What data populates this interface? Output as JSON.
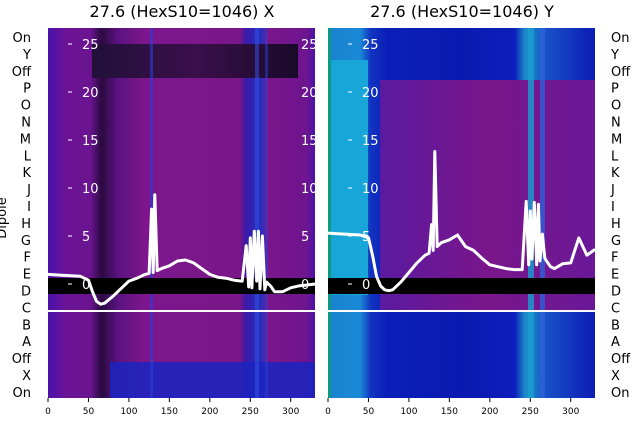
{
  "chart_data": [
    {
      "type": "heatmap",
      "title": "27.6 (HexS10=1046) X",
      "ylabel": "Dipole",
      "categories": [
        "On",
        "Y",
        "Off",
        "P",
        "O",
        "N",
        "M",
        "L",
        "K",
        "J",
        "I",
        "H",
        "G",
        "F",
        "E",
        "D",
        "C",
        "B",
        "A",
        "Off",
        "X",
        "On"
      ],
      "xlim": [
        0,
        330
      ],
      "xticks": [
        0,
        50,
        100,
        150,
        200,
        250,
        300
      ],
      "inner_ylim": [
        -3,
        27
      ],
      "inner_yticks": [
        0,
        5,
        10,
        15,
        20,
        25
      ],
      "series": [
        {
          "name": "",
          "x": [
            0,
            20,
            40,
            50,
            55,
            60,
            65,
            70,
            80,
            90,
            100,
            110,
            120,
            125,
            128,
            130,
            132,
            135,
            140,
            150,
            160,
            170,
            180,
            190,
            200,
            210,
            220,
            230,
            240,
            245,
            248,
            250,
            252,
            255,
            258,
            260,
            262,
            265,
            268,
            270,
            275,
            280,
            290,
            300,
            310,
            320,
            330
          ],
          "y": [
            1.0,
            0.9,
            0.8,
            0.4,
            -0.8,
            -1.8,
            -2.1,
            -2.0,
            -1.3,
            -0.5,
            0.3,
            0.6,
            1.0,
            1.1,
            7.8,
            1.2,
            9.3,
            1.4,
            1.6,
            1.9,
            2.4,
            2.5,
            2.2,
            1.6,
            1.0,
            0.7,
            0.6,
            0.4,
            0.3,
            4.0,
            -0.3,
            4.8,
            -0.4,
            5.5,
            0.3,
            5.5,
            -0.5,
            5.0,
            -0.6,
            0.2,
            -0.2,
            -0.8,
            -0.8,
            -0.4,
            -0.2,
            -0.1,
            0.0
          ]
        }
      ]
    },
    {
      "type": "heatmap",
      "title": "27.6 (HexS10=1046) Y",
      "ylabel": "",
      "categories": [
        "On",
        "Y",
        "Off",
        "P",
        "O",
        "N",
        "M",
        "L",
        "K",
        "J",
        "I",
        "H",
        "G",
        "F",
        "E",
        "D",
        "C",
        "B",
        "A",
        "Off",
        "X",
        "On"
      ],
      "xlim": [
        0,
        330
      ],
      "xticks": [
        0,
        50,
        100,
        150,
        200,
        250,
        300
      ],
      "inner_ylim": [
        -3,
        27
      ],
      "inner_yticks": [
        0,
        5,
        10,
        15,
        20,
        25
      ],
      "series": [
        {
          "name": "",
          "x": [
            0,
            20,
            40,
            50,
            55,
            60,
            65,
            70,
            75,
            80,
            90,
            100,
            110,
            120,
            125,
            128,
            130,
            132,
            135,
            140,
            150,
            160,
            170,
            180,
            190,
            200,
            210,
            220,
            230,
            240,
            245,
            248,
            250,
            252,
            255,
            258,
            260,
            262,
            265,
            268,
            270,
            275,
            280,
            290,
            300,
            310,
            320,
            330
          ],
          "y": [
            5.3,
            5.2,
            5.1,
            4.8,
            3.0,
            0.8,
            -0.2,
            -0.6,
            -0.7,
            -0.6,
            0.2,
            1.2,
            2.2,
            3.0,
            3.2,
            6.2,
            3.5,
            13.8,
            3.9,
            4.3,
            4.6,
            5.1,
            3.9,
            3.5,
            2.7,
            2.0,
            1.8,
            1.6,
            1.5,
            1.5,
            8.6,
            2.0,
            7.6,
            2.6,
            8.5,
            2.0,
            8.3,
            2.4,
            5.2,
            2.7,
            2.4,
            1.8,
            1.6,
            2.1,
            2.2,
            4.8,
            3.0,
            3.6
          ]
        }
      ]
    }
  ],
  "colors": {
    "background_magenta": "#7b1589",
    "background_blue": "#1226c8",
    "band_black": "#000000",
    "line": "#ffffff",
    "cyan": "#18a6d8"
  }
}
